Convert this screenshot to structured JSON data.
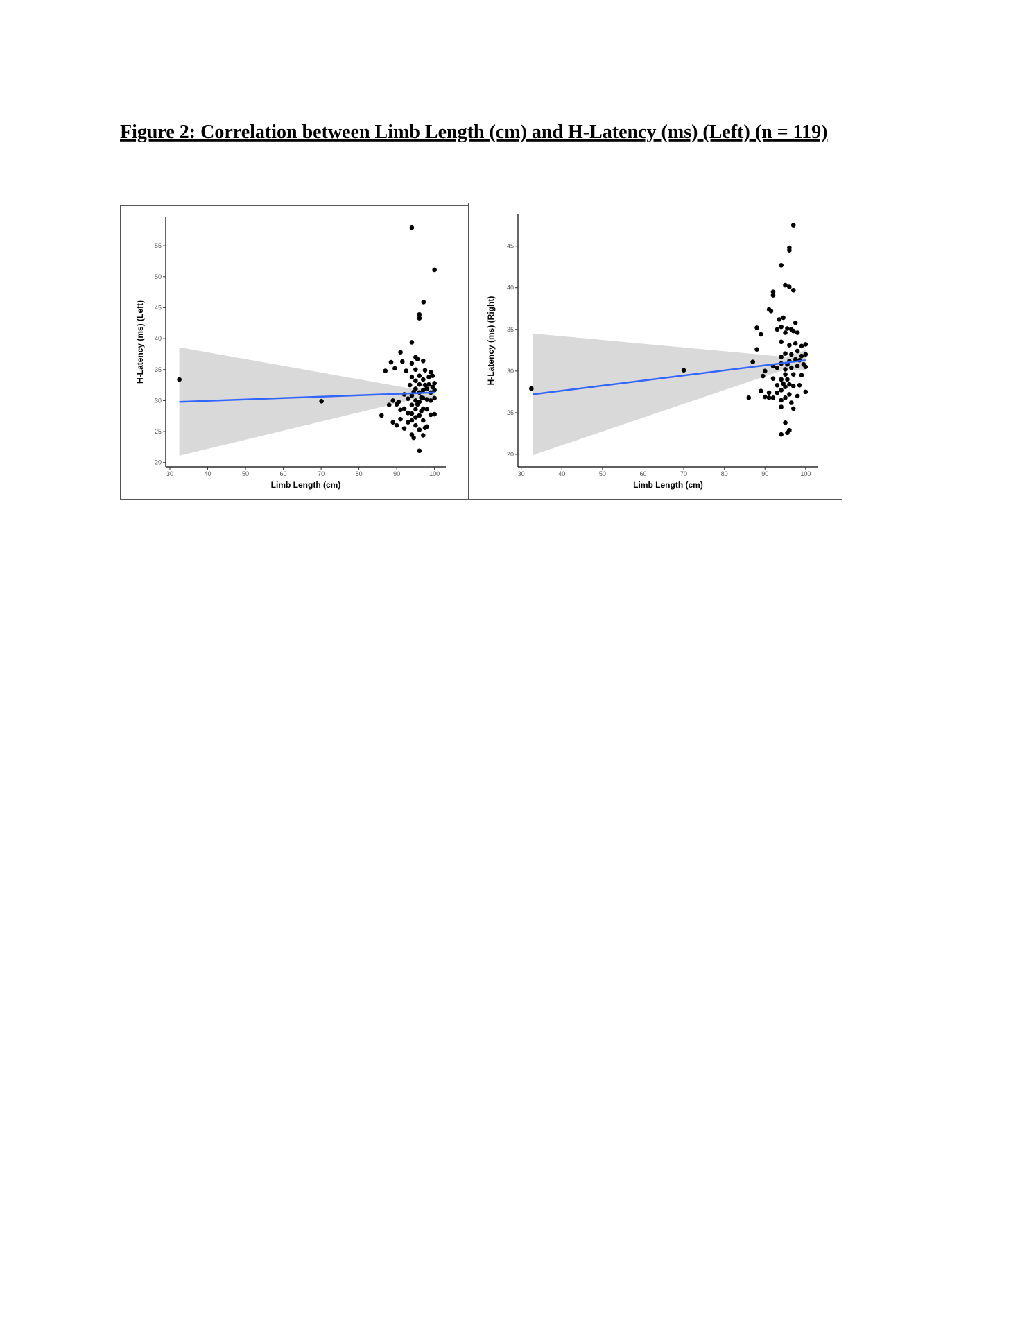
{
  "header": {
    "title": "Figure 2: Correlation between Limb Length (cm) and H-Latency (ms) (Left) (n = 119)"
  },
  "chart_data": [
    {
      "type": "scatter",
      "x_label": "Limb Length (cm)",
      "y_label": "H-Latency (ms) (Left)",
      "xlim": [
        28.9,
        103
      ],
      "ylim": [
        19.3,
        59.6
      ],
      "xticks": [
        30,
        40,
        50,
        60,
        70,
        80,
        90,
        100
      ],
      "yticks": [
        20,
        25,
        30,
        35,
        40,
        45,
        50,
        55
      ],
      "series": [
        {
          "color": "#000000",
          "x": [
            32.5,
            70.1,
            94,
            100,
            97.1,
            96,
            96,
            94,
            86,
            87,
            88,
            88.5,
            89,
            89,
            89.5,
            90,
            90,
            90.5,
            91,
            91,
            91,
            91.5,
            92,
            92,
            92,
            92.5,
            93,
            93,
            93,
            93.5,
            94,
            94,
            94,
            94,
            94,
            94,
            94,
            94.5,
            94.5,
            95,
            95,
            95,
            95,
            95,
            95,
            95,
            95,
            95.5,
            95.5,
            96,
            96,
            96,
            96,
            96,
            96,
            96,
            96.5,
            96.5,
            97,
            97,
            97,
            97,
            97,
            97,
            97,
            97.5,
            97.5,
            97.5,
            98,
            98,
            98,
            98,
            98.5,
            98.5,
            99,
            99,
            99,
            99,
            99.5,
            99.5,
            100,
            100,
            100,
            100
          ],
          "values": [
            33.4,
            29.9,
            57.9,
            51.1,
            45.9,
            43.9,
            43.3,
            39.4,
            27.6,
            34.8,
            29.3,
            36.2,
            30,
            26.5,
            35.2,
            29.4,
            26,
            29.8,
            37.8,
            28.5,
            27,
            36.3,
            31,
            28.7,
            25.5,
            34.8,
            30.3,
            28,
            26.5,
            32.5,
            36,
            33.8,
            30.8,
            29.3,
            27.9,
            26.8,
            24.5,
            31.4,
            24,
            37,
            35,
            33.2,
            31.9,
            30,
            28.6,
            27.3,
            26,
            36.7,
            29.4,
            34,
            32.6,
            31.3,
            29.8,
            27.6,
            25.3,
            21.9,
            30.5,
            28.3,
            36.4,
            33.4,
            31.7,
            30.4,
            28.7,
            26.8,
            24.4,
            34.9,
            32.5,
            25.6,
            31.9,
            30.2,
            28.6,
            25.8,
            33.8,
            32.6,
            34.6,
            31.3,
            30,
            27.7,
            34,
            32.2,
            32.8,
            31.7,
            30.4,
            27.8
          ]
        }
      ],
      "band": {
        "color": "#d9d9d9",
        "x": [
          32.5,
          95,
          100
        ],
        "upper": [
          38.6,
          31.8,
          32.6
        ],
        "lower": [
          21.1,
          30.3,
          30
        ]
      },
      "fit": {
        "color": "#3366ff",
        "x": [
          32.5,
          100
        ],
        "y": [
          29.8,
          31.3
        ]
      }
    },
    {
      "type": "scatter",
      "x_label": "Limb Length (cm)",
      "y_label": "H-Latency (ms) (Right)",
      "xlim": [
        29.2,
        103.1
      ],
      "ylim": [
        18.5,
        48.8
      ],
      "xticks": [
        30,
        40,
        50,
        60,
        70,
        80,
        90,
        100
      ],
      "yticks": [
        20,
        25,
        30,
        35,
        40,
        45
      ],
      "series": [
        {
          "color": "#000000",
          "x": [
            32.5,
            70,
            97,
            96,
            96,
            94,
            95,
            96,
            97,
            86,
            87,
            88,
            88,
            89,
            89,
            89.5,
            90,
            90,
            91,
            91,
            91,
            91.5,
            92,
            92,
            92,
            92,
            92,
            93,
            93,
            93,
            93,
            93.5,
            94,
            94,
            94,
            94,
            94,
            94,
            94,
            94,
            94,
            94.5,
            94.5,
            95,
            95,
            95,
            95,
            95,
            95,
            95,
            95.5,
            95.5,
            95.5,
            95.5,
            96,
            96,
            96,
            96,
            96,
            96.5,
            96.5,
            96.5,
            96.5,
            97,
            97,
            97,
            97,
            97.5,
            97.5,
            97.5,
            98,
            98,
            98,
            98,
            98.5,
            98.5,
            99,
            99,
            99,
            99.5,
            100,
            100,
            100,
            100
          ],
          "values": [
            27.9,
            30.1,
            47.5,
            44.8,
            44.5,
            42.7,
            40.3,
            40.1,
            39.7,
            26.8,
            31.1,
            32.6,
            35.2,
            34.4,
            27.6,
            29.4,
            26.9,
            30,
            37.4,
            27.4,
            26.8,
            37.2,
            39.5,
            39.1,
            30.6,
            29.1,
            26.8,
            35,
            30.4,
            28.3,
            27.4,
            36.2,
            35.3,
            33.5,
            31.7,
            30.9,
            29,
            27.7,
            26.5,
            25.7,
            22.4,
            36.4,
            28.5,
            34.6,
            32.1,
            30.2,
            29.6,
            28.1,
            26.8,
            23.8,
            35.1,
            30.8,
            29,
            22.6,
            33.1,
            31.2,
            28.4,
            27.2,
            22.9,
            35,
            32,
            30.4,
            26.2,
            34.8,
            29.6,
            28.2,
            25.5,
            35.8,
            33.3,
            31.4,
            34.6,
            32.4,
            30.6,
            27,
            31.3,
            28.3,
            33,
            31.8,
            29.5,
            30.8,
            33.2,
            32,
            30.5,
            27.5
          ]
        }
      ],
      "band": {
        "color": "#d9d9d9",
        "x": [
          32.8,
          95,
          100
        ],
        "upper": [
          34.5,
          31.7,
          32.5
        ],
        "lower": [
          19.9,
          30.2,
          30.1
        ]
      },
      "fit": {
        "color": "#3366ff",
        "x": [
          32.8,
          100
        ],
        "y": [
          27.2,
          31.3
        ]
      }
    }
  ]
}
